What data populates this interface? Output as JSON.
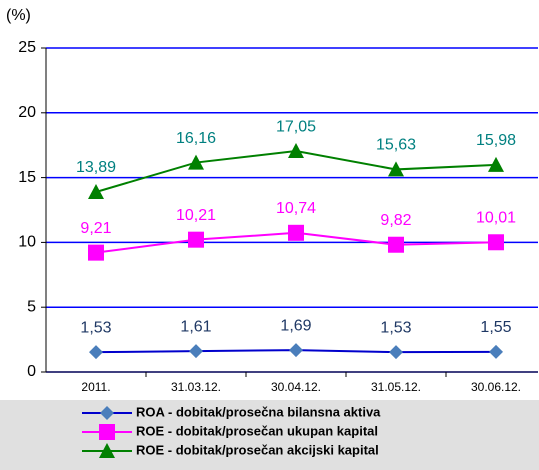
{
  "chart_data": {
    "type": "line",
    "y_label": "(%)",
    "categories": [
      "2011.",
      "31.03.12.",
      "30.04.12.",
      "31.05.12.",
      "30.06.12."
    ],
    "series": [
      {
        "name": "ROA - dobitak/prosečna bilansna aktiva",
        "color": "#0000cc",
        "marker_color": "#4a7ebb",
        "label_color": "#1f3864",
        "marker": "diamond",
        "values": [
          1.53,
          1.61,
          1.69,
          1.53,
          1.55
        ],
        "value_labels": [
          "1,53",
          "1,61",
          "1,69",
          "1,53",
          "1,55"
        ]
      },
      {
        "name": "ROE - dobitak/prosečan ukupan kapital",
        "color": "#ff00ff",
        "marker_color": "#ff00ff",
        "label_color": "#ff00ff",
        "marker": "square",
        "values": [
          9.21,
          10.21,
          10.74,
          9.82,
          10.01
        ],
        "value_labels": [
          "9,21",
          "10,21",
          "10,74",
          "9,82",
          "10,01"
        ]
      },
      {
        "name": "ROE - dobitak/prosečan akcijski kapital",
        "color": "#008000",
        "marker_color": "#008000",
        "label_color": "#008080",
        "marker": "triangle",
        "values": [
          13.89,
          16.16,
          17.05,
          15.63,
          15.98
        ],
        "value_labels": [
          "13,89",
          "16,16",
          "17,05",
          "15,63",
          "15,98"
        ]
      }
    ],
    "ylim": [
      0,
      25
    ],
    "yticks": [
      0,
      5,
      10,
      15,
      20,
      25
    ],
    "grid": true
  }
}
